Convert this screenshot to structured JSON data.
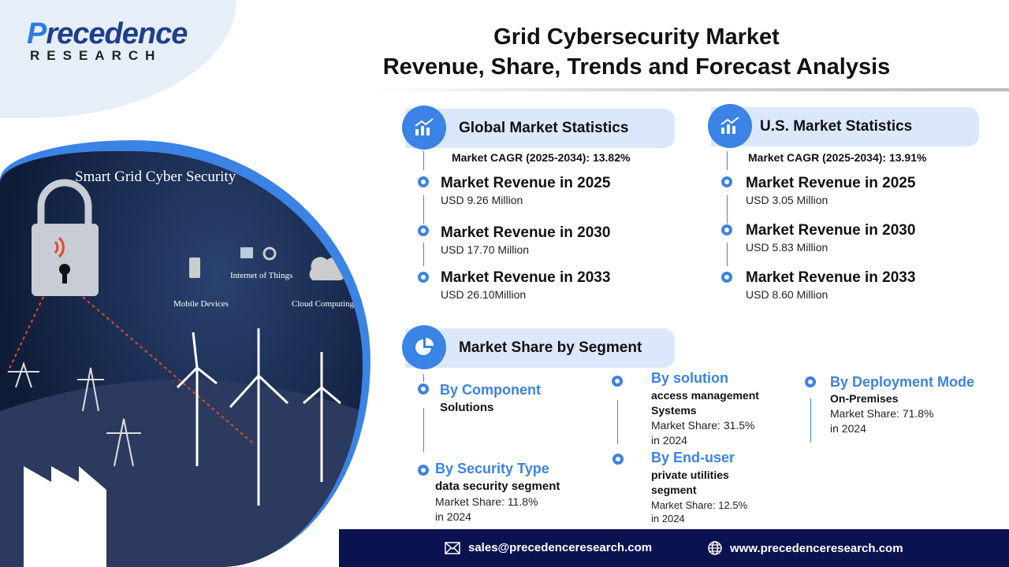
{
  "logo": {
    "line1a": "P",
    "line1b": "recedence",
    "line2": "RESEARCH"
  },
  "title": {
    "line1": "Grid Cybersecurity Market",
    "line2": "Revenue, Share, Trends and Forecast Analysis"
  },
  "illustration": {
    "heading": "Smart Grid Cyber Security",
    "labels": [
      "Internet of Things",
      "Mobile Devices",
      "Cloud Computing"
    ]
  },
  "global": {
    "header": "Global Market Statistics",
    "cagr": "Market CAGR (2025-2034): 13.82%",
    "items": [
      {
        "title": "Market Revenue in 2025",
        "value": "USD 9.26 Million"
      },
      {
        "title": "Market Revenue in 2030",
        "value": "USD 17.70 Million"
      },
      {
        "title": "Market Revenue in 2033",
        "value": "USD 26.10Million"
      }
    ]
  },
  "us": {
    "header": "U.S. Market Statistics",
    "cagr": "Market CAGR (2025-2034): 13.91%",
    "items": [
      {
        "title": "Market Revenue in 2025",
        "value": "USD 3.05  Million"
      },
      {
        "title": "Market Revenue in 2030",
        "value": "USD 5.83 Million"
      },
      {
        "title": "Market Revenue in 2033",
        "value": "USD 8.60 Million"
      }
    ]
  },
  "segment": {
    "header": "Market Share by Segment",
    "component": {
      "title": "By Component",
      "name": "Solutions"
    },
    "security": {
      "title": "By Security Type",
      "name": "data security segment",
      "share": "Market Share: 11.8%",
      "year": "in 2024"
    },
    "solution": {
      "title": "By solution",
      "name1": "access management",
      "name2": "Systems",
      "share": "Market Share: 31.5%",
      "year": "in 2024"
    },
    "enduser": {
      "title": "By End-user",
      "name1": "private utilities",
      "name2": "segment",
      "share": "Market Share:  12.5%",
      "year": "in 2024"
    },
    "deployment": {
      "title": "By Deployment Mode",
      "name": "On-Premises",
      "share": "Market Share: 71.8%",
      "year": "in 2024"
    }
  },
  "footer": {
    "email": "sales@precedenceresearch.com",
    "website": "www.precedenceresearch.com"
  },
  "colors": {
    "accent": "#3b83e5",
    "header_bg": "#dbe8fb",
    "footer_bg": "#0b1250"
  }
}
